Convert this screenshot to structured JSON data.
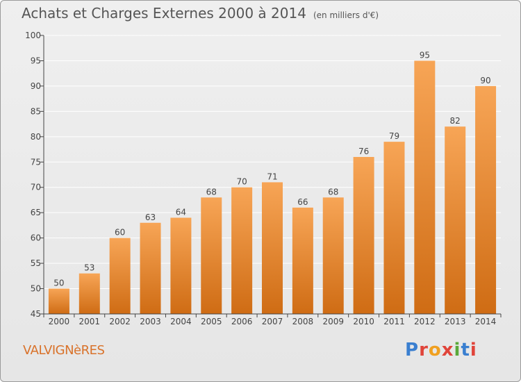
{
  "header": {
    "title": "Achats et Charges Externes 2000 à 2014",
    "subtitle": "(en milliers d'€)"
  },
  "footer": {
    "commune": "VALVIGNèRES",
    "logo_text": "Proxiti",
    "logo_colors": [
      "#3a7fd0",
      "#e0443a",
      "#f0a020",
      "#e0443a",
      "#5aa83a",
      "#3a7fd0",
      "#e0443a"
    ]
  },
  "colors": {
    "bar_light": "#f7a556",
    "bar_dark": "#cf6c14",
    "axis": "#444444",
    "grid": "#ffffff"
  },
  "chart_data": {
    "type": "bar",
    "title": "Achats et Charges Externes 2000 à 2014",
    "subtitle": "(en milliers d'€)",
    "categories": [
      "2000",
      "2001",
      "2002",
      "2003",
      "2004",
      "2005",
      "2006",
      "2007",
      "2008",
      "2009",
      "2010",
      "2011",
      "2012",
      "2013",
      "2014"
    ],
    "values": [
      50,
      53,
      60,
      63,
      64,
      68,
      70,
      71,
      66,
      68,
      76,
      79,
      95,
      82,
      90
    ],
    "ylim": [
      45,
      100
    ],
    "yticks": [
      45,
      50,
      55,
      60,
      65,
      70,
      75,
      80,
      85,
      90,
      95,
      100
    ],
    "grid": true,
    "data_labels": true
  }
}
